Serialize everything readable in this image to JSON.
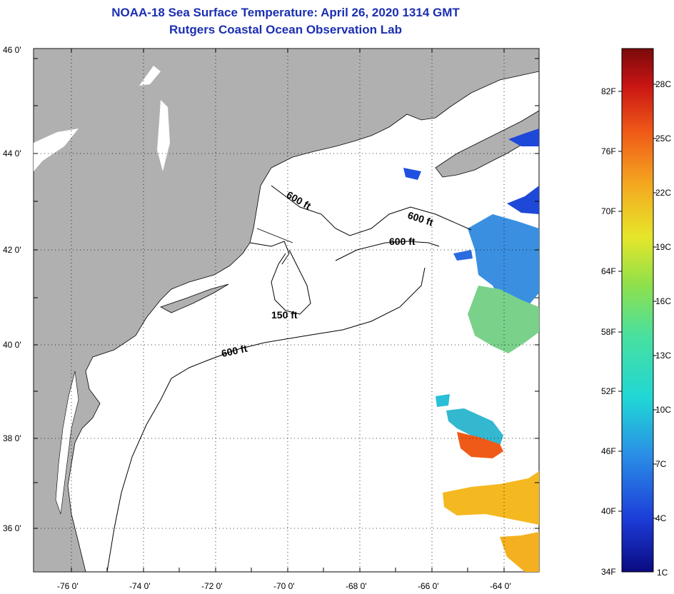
{
  "title": {
    "line1": "NOAA-18 Sea Surface Temperature:  April 26, 2020 1314 GMT",
    "line2": "Rutgers Coastal Ocean Observation Lab"
  },
  "map": {
    "lon_range": [
      -77,
      -63
    ],
    "lat_range": [
      35,
      46
    ],
    "lat_labels": [
      "46 0'",
      "44 0'",
      "42 0'",
      "40 0'",
      "38 0'",
      "36 0'"
    ],
    "lon_labels": [
      "-76 0'",
      "-74 0'",
      "-72 0'",
      "-70 0'",
      "-68 0'",
      "-66 0'",
      "-64 0'"
    ],
    "contour_labels": [
      "600 ft",
      "600 ft",
      "600 ft",
      "150 ft",
      "600 ft"
    ],
    "colors": {
      "land": "#b0b0b0",
      "ocean": "#ffffff",
      "title": "#1b2fb0"
    }
  },
  "colorbar": {
    "f_labels": [
      "82F",
      "76F",
      "70F",
      "64F",
      "58F",
      "52F",
      "46F",
      "40F",
      "34F"
    ],
    "c_labels": [
      "28C",
      "25C",
      "22C",
      "19C",
      "16C",
      "13C",
      "10C",
      "7C",
      "4C",
      "1C"
    ],
    "stops": [
      "#0a0a80",
      "#1c3cd8",
      "#2a8ce6",
      "#20d6d6",
      "#48e0a0",
      "#90e04a",
      "#e6e62a",
      "#f4a820",
      "#f05a18",
      "#c81414",
      "#7a0a0a"
    ]
  }
}
